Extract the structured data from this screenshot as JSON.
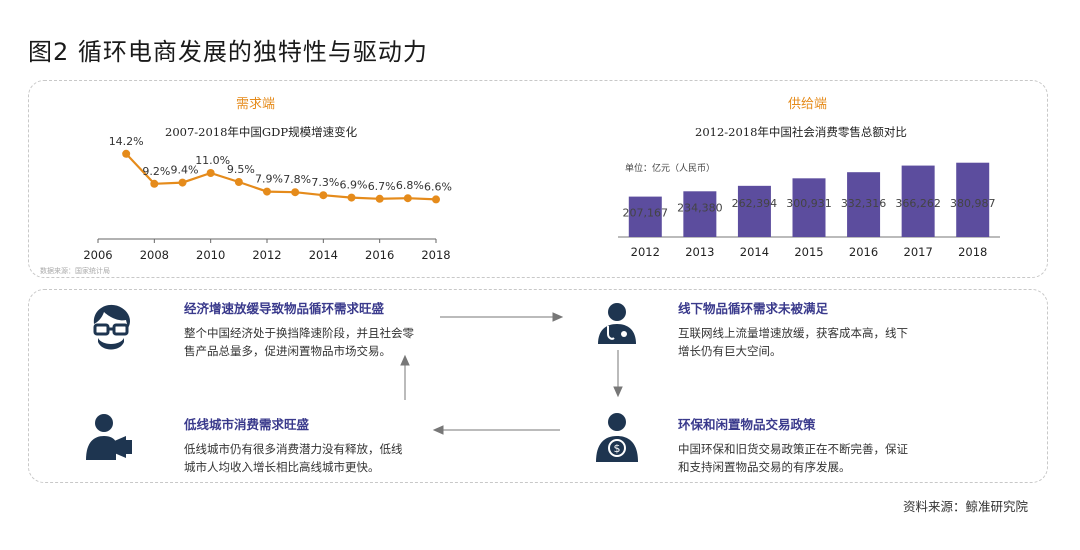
{
  "title": "图2  循环电商发展的独特性与驱动力",
  "demand": {
    "header": "需求端",
    "subtitle": "2007-2018年中国GDP规模增速变化",
    "source_note": "数据来源：国家统计局"
  },
  "supply": {
    "header": "供给端",
    "subtitle": "2012-2018年中国社会消费零售总额对比",
    "unit": "单位：亿元（人民币）"
  },
  "chart_data": [
    {
      "type": "line",
      "title": "2007-2018年中国GDP规模增速变化",
      "x": [
        2007,
        2008,
        2009,
        2010,
        2011,
        2012,
        2013,
        2014,
        2015,
        2016,
        2017,
        2018
      ],
      "series": [
        {
          "values": [
            14.2,
            9.2,
            9.4,
            11.0,
            9.5,
            7.9,
            7.8,
            7.3,
            6.9,
            6.7,
            6.8,
            6.6
          ]
        }
      ],
      "data_labels": [
        "14.2%",
        "9.2%",
        "9.4%",
        "11.0%",
        "9.5%",
        "7.9%",
        "7.8%",
        "7.3%",
        "6.9%",
        "6.7%",
        "6.8%",
        "6.6%"
      ],
      "x_ticks": [
        "2006",
        "2008",
        "2010",
        "2012",
        "2014",
        "2016",
        "2018"
      ],
      "xlim": [
        2006,
        2018
      ],
      "ylim": [
        0,
        16
      ],
      "color": "#e58b1b",
      "grid": false
    },
    {
      "type": "bar",
      "title": "2012-2018年中国社会消费零售总额对比",
      "categories": [
        "2012",
        "2013",
        "2014",
        "2015",
        "2016",
        "2017",
        "2018"
      ],
      "values": [
        207167,
        234380,
        262394,
        300931,
        332316,
        366262,
        380987
      ],
      "data_labels": [
        "207,167",
        "234,380",
        "262,394",
        "300,931",
        "332,316",
        "366,262",
        "380,987"
      ],
      "ylim": [
        0,
        400000
      ],
      "color": "#5c4d9e",
      "grid": false
    }
  ],
  "points": [
    {
      "icon": "glasses-man-icon",
      "title": "经济增速放缓导致物品循环需求旺盛",
      "body1": "整个中国经济处于换挡降速阶段，并且社会零",
      "body2": "售产品总量多，促进闲置物品市场交易。"
    },
    {
      "icon": "doctor-icon",
      "title": "线下物品循环需求未被满足",
      "body1": "互联网线上流量增速放缓，获客成本高，线下",
      "body2": "增长仍有巨大空间。"
    },
    {
      "icon": "megaphone-man-icon",
      "title": "低线城市消费需求旺盛",
      "body1": "低线城市仍有很多消费潜力没有释放，低线",
      "body2": "城市人均收入增长相比高线城市更快。"
    },
    {
      "icon": "money-man-icon",
      "title": "环保和闲置物品交易政策",
      "body1": "中国环保和旧货交易政策正在不断完善，保证",
      "body2": "和支持闲置物品交易的有序发展。"
    }
  ],
  "source": "资料来源：鲸准研究院",
  "colors": {
    "accent": "#e58b1b",
    "bar": "#5c4d9e",
    "icon": "#1e3550",
    "point_title": "#3a3a8c"
  }
}
